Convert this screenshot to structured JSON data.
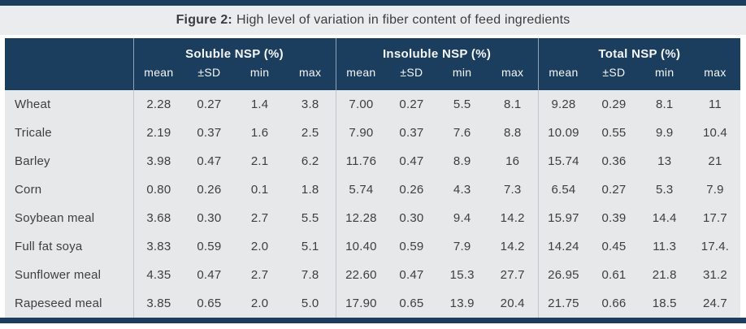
{
  "title": {
    "bold": "Figure 2:",
    "rest": "High level of variation in fiber content of feed ingredients"
  },
  "colors": {
    "accent_navy": "#1c3e5e",
    "title_band_gray": "#ebeced",
    "table_body_gray": "#e7e8e9",
    "header_text": "#f4f6f8",
    "body_text": "#3c3e40"
  },
  "chart_data": {
    "type": "table",
    "title": "Figure 2: High level of variation in fiber content of feed ingredients",
    "column_groups": [
      {
        "label": "Soluble NSP (%)",
        "columns": [
          "mean",
          "±SD",
          "min",
          "max"
        ]
      },
      {
        "label": "Insoluble NSP (%)",
        "columns": [
          "mean",
          "±SD",
          "min",
          "max"
        ]
      },
      {
        "label": "Total NSP (%)",
        "columns": [
          "mean",
          "±SD",
          "min",
          "max"
        ]
      }
    ],
    "rows": [
      {
        "label": "Wheat",
        "values": [
          "2.28",
          "0.27",
          "1.4",
          "3.8",
          "7.00",
          "0.27",
          "5.5",
          "8.1",
          "9.28",
          "0.29",
          "8.1",
          "11"
        ]
      },
      {
        "label": "Tricale",
        "values": [
          "2.19",
          "0.37",
          "1.6",
          "2.5",
          "7.90",
          "0.37",
          "7.6",
          "8.8",
          "10.09",
          "0.55",
          "9.9",
          "10.4"
        ]
      },
      {
        "label": "Barley",
        "values": [
          "3.98",
          "0.47",
          "2.1",
          "6.2",
          "11.76",
          "0.47",
          "8.9",
          "16",
          "15.74",
          "0.36",
          "13",
          "21"
        ]
      },
      {
        "label": "Corn",
        "values": [
          "0.80",
          "0.26",
          "0.1",
          "1.8",
          "5.74",
          "0.26",
          "4.3",
          "7.3",
          "6.54",
          "0.27",
          "5.3",
          "7.9"
        ]
      },
      {
        "label": "Soybean meal",
        "values": [
          "3.68",
          "0.30",
          "2.7",
          "5.5",
          "12.28",
          "0.30",
          "9.4",
          "14.2",
          "15.97",
          "0.39",
          "14.4",
          "17.7"
        ]
      },
      {
        "label": "Full fat soya",
        "values": [
          "3.83",
          "0.59",
          "2.0",
          "5.1",
          "10.40",
          "0.59",
          "7.9",
          "14.2",
          "14.24",
          "0.45",
          "11.3",
          "17.4."
        ]
      },
      {
        "label": "Sunflower meal",
        "values": [
          "4.35",
          "0.47",
          "2.7",
          "7.8",
          "22.60",
          "0.47",
          "15.3",
          "27.7",
          "26.95",
          "0.61",
          "21.8",
          "31.2"
        ]
      },
      {
        "label": "Rapeseed meal",
        "values": [
          "3.85",
          "0.65",
          "2.0",
          "5.0",
          "17.90",
          "0.65",
          "13.9",
          "20.4",
          "21.75",
          "0.66",
          "18.5",
          "24.7"
        ]
      }
    ]
  }
}
